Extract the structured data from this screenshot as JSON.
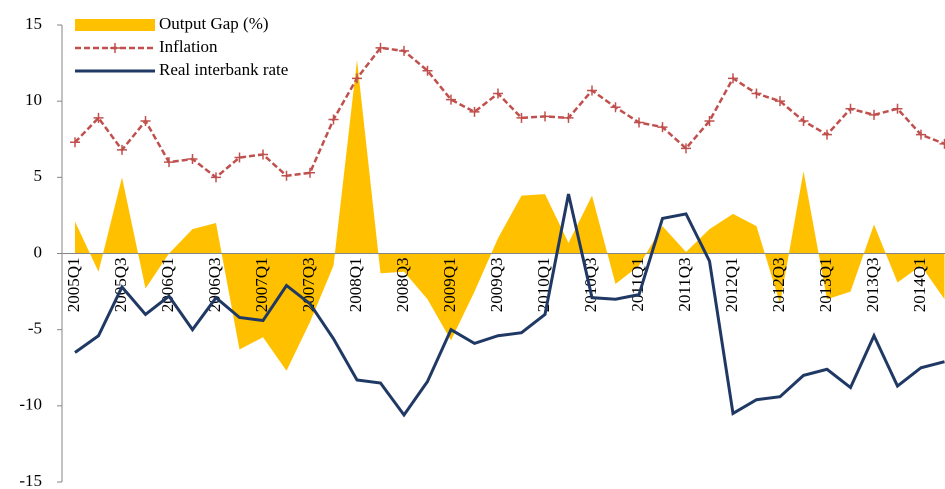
{
  "chart_data": {
    "type": "line",
    "categories": [
      "2005Q1",
      null,
      "2005Q3",
      null,
      "2006Q1",
      null,
      "2006Q3",
      null,
      "2007Q1",
      null,
      "2007Q3",
      null,
      "2008Q1",
      null,
      "2008Q3",
      null,
      "2009Q1",
      null,
      "2009Q3",
      null,
      "2010Q1",
      null,
      "2010Q3",
      null,
      "2011Q1",
      null,
      "2011Q3",
      null,
      "2012Q1",
      null,
      "2012Q3",
      null,
      "2013Q1",
      null,
      "2013Q3",
      null,
      "2014Q1",
      null
    ],
    "series": [
      {
        "name": "Output Gap (%)",
        "kind": "area",
        "color": "#ffc000",
        "values": [
          2.1,
          -1.2,
          5.0,
          -2.3,
          0.0,
          1.6,
          2.0,
          -6.3,
          -5.5,
          -7.7,
          -4.5,
          -0.8,
          12.7,
          -1.3,
          -1.2,
          -3.0,
          -5.7,
          -2.5,
          1.0,
          3.8,
          3.9,
          0.7,
          3.8,
          -2.0,
          -0.8,
          1.8,
          0.1,
          1.6,
          2.6,
          1.8,
          -3.3,
          5.4,
          -3.0,
          -2.5,
          1.9,
          -1.9,
          -0.8,
          -3.0
        ]
      },
      {
        "name": "Inflation",
        "kind": "dashed-marker",
        "color": "#c0504d",
        "values": [
          7.3,
          8.9,
          6.8,
          8.7,
          6.0,
          6.2,
          5.0,
          6.3,
          6.5,
          5.1,
          5.3,
          8.8,
          11.5,
          13.5,
          13.3,
          12.0,
          10.1,
          9.3,
          10.5,
          8.9,
          9.0,
          8.9,
          10.7,
          9.6,
          8.6,
          8.3,
          6.9,
          8.7,
          11.5,
          10.5,
          10.0,
          8.7,
          7.8,
          9.5,
          9.1,
          9.5,
          7.8,
          7.2
        ]
      },
      {
        "name": "Real interbank rate",
        "kind": "line",
        "color": "#1f3864",
        "values": [
          -6.5,
          -5.4,
          -2.2,
          -4.0,
          -2.8,
          -5.0,
          -2.9,
          -4.2,
          -4.4,
          -2.1,
          -3.3,
          -5.6,
          -8.3,
          -8.5,
          -10.6,
          -8.4,
          -5.0,
          -5.9,
          -5.4,
          -5.2,
          -4.0,
          3.9,
          -2.9,
          -3.0,
          -2.7,
          2.3,
          2.6,
          -0.5,
          -10.5,
          -9.6,
          -9.4,
          -8.0,
          -7.6,
          -8.8,
          -5.4,
          -8.7,
          -7.5,
          -7.1
        ]
      }
    ],
    "ylim": [
      -15,
      15
    ],
    "yticks": [
      15,
      10,
      5,
      0,
      -5,
      -10,
      -15
    ],
    "grid": false,
    "legend": "top-left"
  }
}
